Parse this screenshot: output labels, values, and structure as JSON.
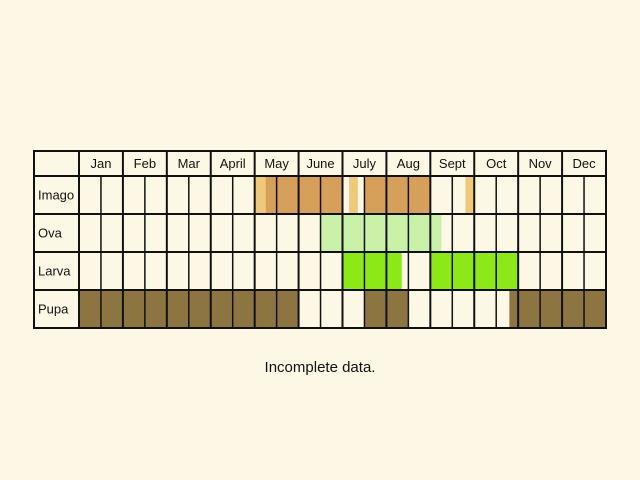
{
  "months": [
    "Jan",
    "Feb",
    "Mar",
    "April",
    "May",
    "June",
    "July",
    "Aug",
    "Sept",
    "Oct",
    "Nov",
    "Dec"
  ],
  "colors": {
    "background": "#fdf8e6",
    "grid": "#111111",
    "imago_light": "#f0c87a",
    "imago_dark": "#d7a05a",
    "ova": "#c9f2a8",
    "larva": "#8ce817",
    "pupa": "#8c7540"
  },
  "stages": [
    {
      "name": "Imago",
      "segments": [
        {
          "from": 8.0,
          "to": 8.5,
          "shade": "imago_light"
        },
        {
          "from": 8.5,
          "to": 12.0,
          "shade": "imago_dark"
        },
        {
          "from": 12.3,
          "to": 12.7,
          "shade": "imago_light"
        },
        {
          "from": 13.0,
          "to": 16.0,
          "shade": "imago_dark"
        },
        {
          "from": 17.6,
          "to": 18.0,
          "shade": "imago_light"
        }
      ]
    },
    {
      "name": "Ova",
      "segments": [
        {
          "from": 11.0,
          "to": 16.5,
          "shade": "ova"
        }
      ]
    },
    {
      "name": "Larva",
      "segments": [
        {
          "from": 12.0,
          "to": 14.7,
          "shade": "larva"
        },
        {
          "from": 16.0,
          "to": 20.0,
          "shade": "larva"
        }
      ]
    },
    {
      "name": "Pupa",
      "segments": [
        {
          "from": 0.0,
          "to": 10.0,
          "shade": "pupa"
        },
        {
          "from": 13.0,
          "to": 15.0,
          "shade": "pupa"
        },
        {
          "from": 19.6,
          "to": 24.0,
          "shade": "pupa"
        }
      ]
    }
  ],
  "caption": "Incomplete data."
}
